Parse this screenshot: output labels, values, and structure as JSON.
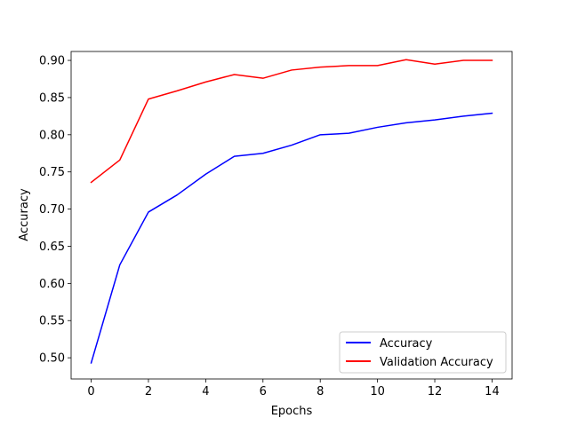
{
  "chart_data": {
    "type": "line",
    "title": "",
    "xlabel": "Epochs",
    "ylabel": "Accuracy",
    "x": [
      0,
      1,
      2,
      3,
      4,
      5,
      6,
      7,
      8,
      9,
      10,
      11,
      12,
      13,
      14
    ],
    "xlim": [
      -0.7,
      14.7
    ],
    "ylim": [
      0.4715,
      0.912
    ],
    "xticks": [
      0,
      2,
      4,
      6,
      8,
      10,
      12,
      14
    ],
    "yticks": [
      0.5,
      0.55,
      0.6,
      0.65,
      0.7,
      0.75,
      0.8,
      0.85,
      0.9
    ],
    "xtick_labels": [
      "0",
      "2",
      "4",
      "6",
      "8",
      "10",
      "12",
      "14"
    ],
    "ytick_labels": [
      "0.50",
      "0.55",
      "0.60",
      "0.65",
      "0.70",
      "0.75",
      "0.80",
      "0.85",
      "0.90"
    ],
    "grid": false,
    "legend_position": "lower-right",
    "series": [
      {
        "name": "Accuracy",
        "color": "#0000ff",
        "values": [
          0.493,
          0.625,
          0.696,
          0.719,
          0.747,
          0.771,
          0.775,
          0.786,
          0.8,
          0.802,
          0.81,
          0.816,
          0.82,
          0.825,
          0.829
        ]
      },
      {
        "name": "Validation Accuracy",
        "color": "#ff0000",
        "values": [
          0.736,
          0.766,
          0.848,
          0.859,
          0.871,
          0.881,
          0.876,
          0.887,
          0.891,
          0.893,
          0.893,
          0.901,
          0.895,
          0.9,
          0.9
        ]
      }
    ]
  }
}
